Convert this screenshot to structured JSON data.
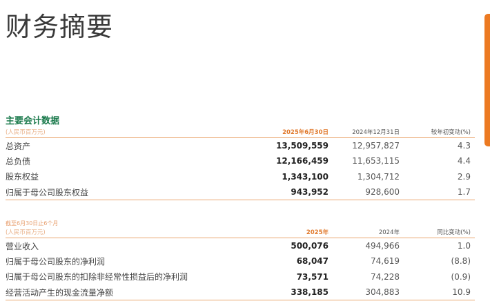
{
  "title": "财务摘要",
  "section_heading": "主要会计数据",
  "table1": {
    "unit": "(人民币百万元)",
    "headers": [
      "2025年6月30日",
      "2024年12月31日",
      "较年初变动(%)"
    ],
    "rows": [
      {
        "label": "总资产",
        "v2025": "13,509,559",
        "v2024": "12,957,827",
        "change": "4.3"
      },
      {
        "label": "总负债",
        "v2025": "12,166,459",
        "v2024": "11,653,115",
        "change": "4.4"
      },
      {
        "label": "股东权益",
        "v2025": "1,343,100",
        "v2024": "1,304,712",
        "change": "2.9"
      },
      {
        "label": "归属于母公司股东权益",
        "v2025": "943,952",
        "v2024": "928,600",
        "change": "1.7"
      }
    ]
  },
  "table2": {
    "period_note": "截至6月30日止6个月",
    "unit": "(人民币百万元)",
    "headers": [
      "2025年",
      "2024年",
      "同比变动(%)"
    ],
    "rows": [
      {
        "label": "营业收入",
        "v2025": "500,076",
        "v2024": "494,966",
        "change": "1.0"
      },
      {
        "label": "归属于母公司股东的净利润",
        "v2025": "68,047",
        "v2024": "74,619",
        "change": "(8.8)"
      },
      {
        "label": "归属于母公司股东的扣除非经常性损益后的净利润",
        "v2025": "73,571",
        "v2024": "74,228",
        "change": "(0.9)"
      },
      {
        "label": "经营活动产生的现金流量净额",
        "v2025": "338,185",
        "v2024": "304,883",
        "change": "10.9"
      }
    ]
  },
  "colors": {
    "accent": "#ec7a22",
    "heading": "#1b7a4c"
  }
}
